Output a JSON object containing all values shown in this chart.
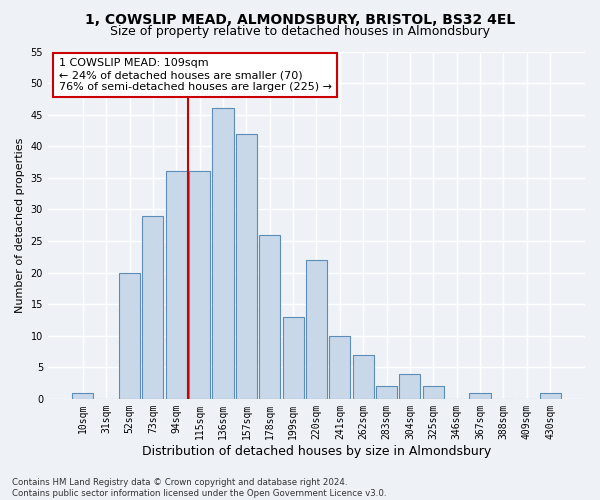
{
  "title1": "1, COWSLIP MEAD, ALMONDSBURY, BRISTOL, BS32 4EL",
  "title2": "Size of property relative to detached houses in Almondsbury",
  "xlabel": "Distribution of detached houses by size in Almondsbury",
  "ylabel": "Number of detached properties",
  "footnote": "Contains HM Land Registry data © Crown copyright and database right 2024.\nContains public sector information licensed under the Open Government Licence v3.0.",
  "bar_labels": [
    "10sqm",
    "31sqm",
    "52sqm",
    "73sqm",
    "94sqm",
    "115sqm",
    "136sqm",
    "157sqm",
    "178sqm",
    "199sqm",
    "220sqm",
    "241sqm",
    "262sqm",
    "283sqm",
    "304sqm",
    "325sqm",
    "346sqm",
    "367sqm",
    "388sqm",
    "409sqm",
    "430sqm"
  ],
  "bar_values": [
    1,
    0,
    20,
    29,
    36,
    36,
    46,
    42,
    26,
    13,
    22,
    10,
    7,
    2,
    4,
    2,
    0,
    1,
    0,
    0,
    1
  ],
  "bar_color": "#c8d8e8",
  "bar_edge_color": "#5b8db8",
  "vline_index": 4,
  "vline_color": "#cc0000",
  "annotation_text": "1 COWSLIP MEAD: 109sqm\n← 24% of detached houses are smaller (70)\n76% of semi-detached houses are larger (225) →",
  "annotation_box_color": "#ffffff",
  "annotation_box_edge": "#cc0000",
  "ylim": [
    0,
    55
  ],
  "yticks": [
    0,
    5,
    10,
    15,
    20,
    25,
    30,
    35,
    40,
    45,
    50,
    55
  ],
  "background_color": "#eef2f7",
  "grid_color": "#ffffff",
  "title1_fontsize": 10,
  "title2_fontsize": 9,
  "xlabel_fontsize": 9,
  "ylabel_fontsize": 8,
  "tick_fontsize": 7,
  "annotation_fontsize": 8
}
